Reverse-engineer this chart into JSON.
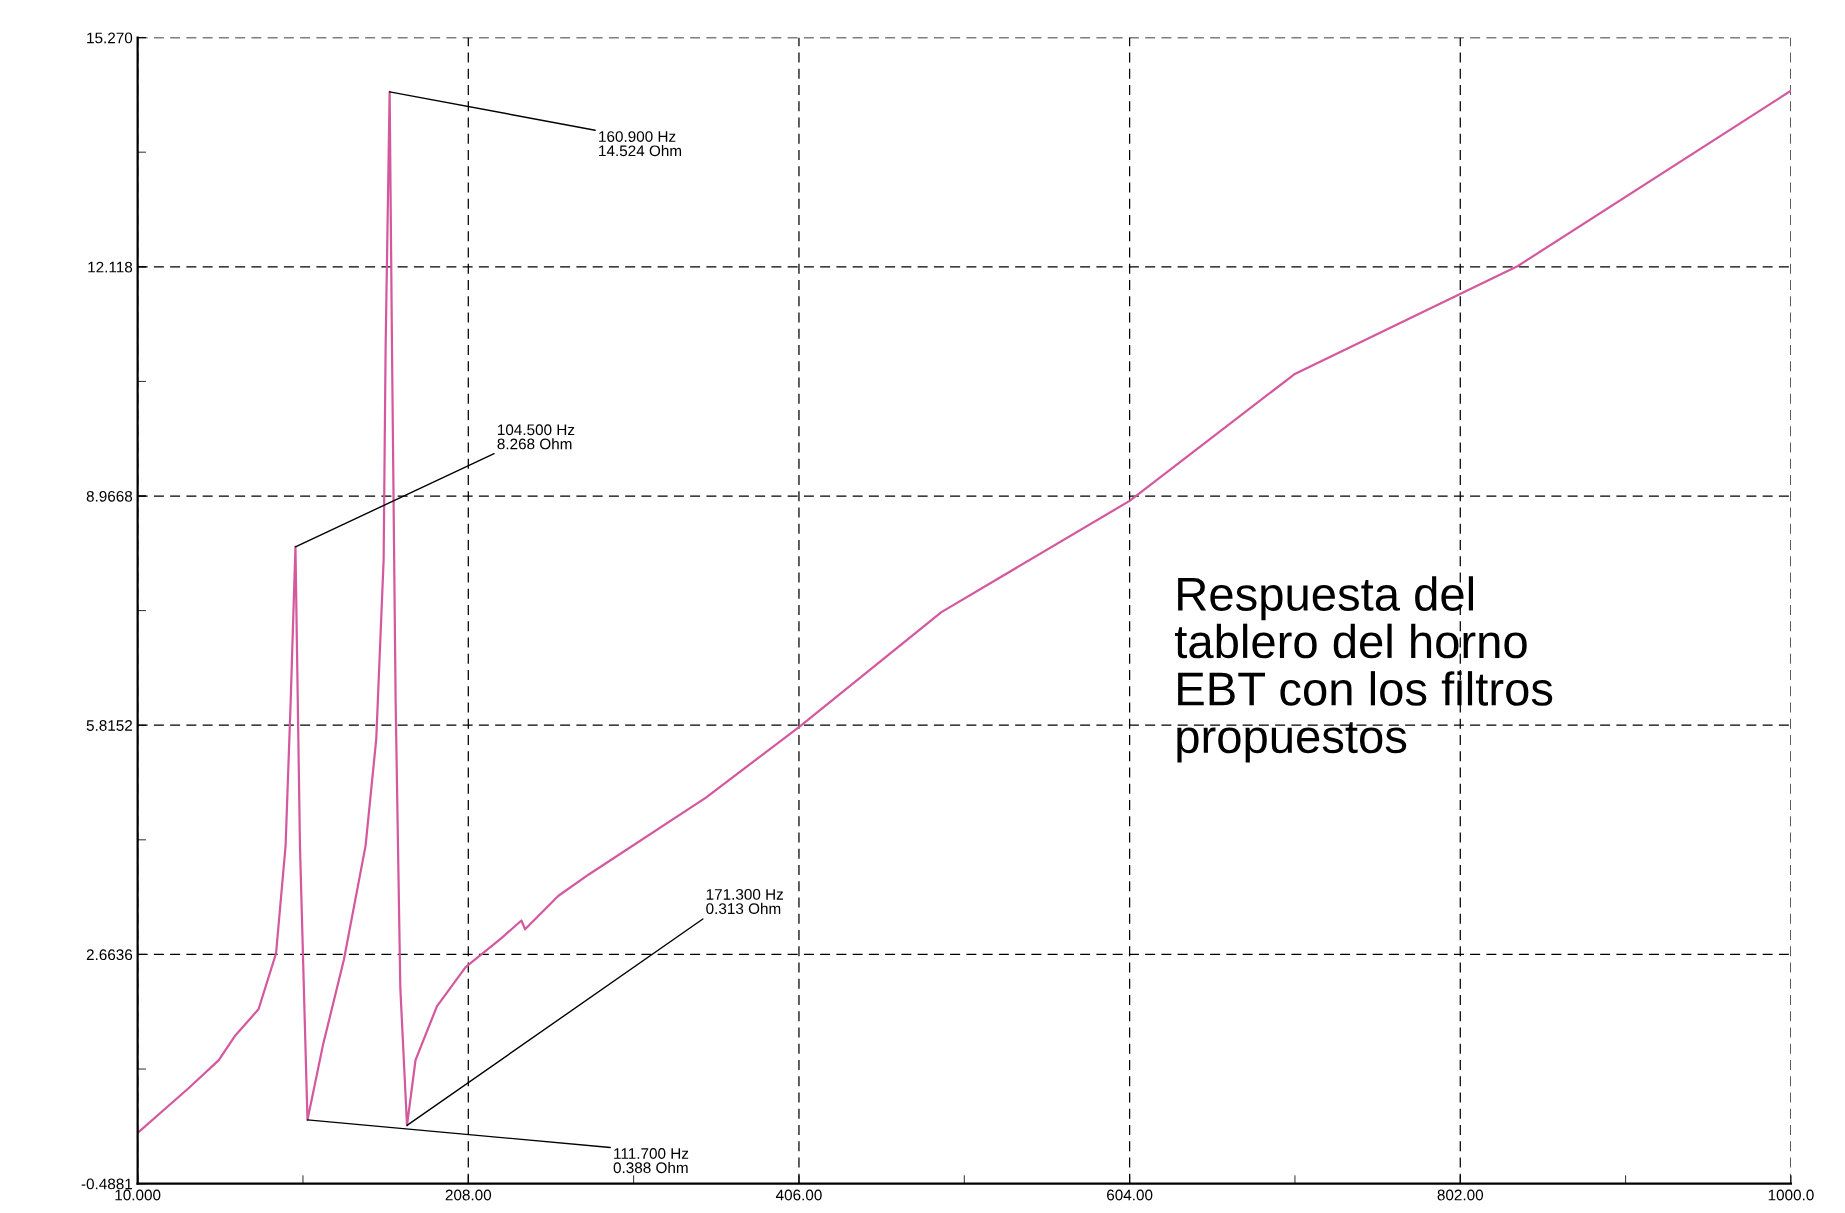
{
  "chart_data": {
    "type": "line",
    "x": [
      10,
      40.3,
      58.6,
      68.5,
      82.4,
      92.9,
      98.6,
      101.6,
      104.5,
      107.2,
      111.7,
      120.9,
      133.5,
      146.5,
      152.9,
      157.3,
      158.5,
      160.9,
      162.3,
      164.5,
      167.3,
      171.3,
      176.4,
      189.2,
      206.4,
      227.5,
      239.8,
      242,
      262,
      280.6,
      350.3,
      406,
      491.3,
      604,
      702.6,
      836.5,
      1000
    ],
    "series": [
      {
        "color": "#d4589e",
        "values": [
          0.21,
          0.82,
          1.21,
          1.55,
          1.91,
          2.68,
          4.16,
          6.12,
          8.268,
          4.16,
          0.388,
          1.41,
          2.59,
          4.16,
          5.63,
          8.09,
          11.03,
          14.524,
          11.03,
          6.12,
          2.2,
          0.313,
          1.21,
          1.95,
          2.49,
          2.88,
          3.13,
          3.01,
          3.47,
          3.77,
          4.82,
          5.79,
          7.37,
          8.9,
          10.64,
          12.13,
          14.54
        ]
      }
    ],
    "xlim": [
      10,
      1000
    ],
    "ylim": [
      -0.4881,
      15.27
    ],
    "xticks": [
      {
        "value": 10,
        "label": "10.000"
      },
      {
        "value": 208,
        "label": "208.00"
      },
      {
        "value": 406,
        "label": "406.00"
      },
      {
        "value": 604,
        "label": "604.00"
      },
      {
        "value": 802,
        "label": "802.00"
      },
      {
        "value": 1000,
        "label": "1000.0"
      }
    ],
    "yticks": [
      -0.4881,
      2.6636,
      5.8152,
      8.9668,
      12.118,
      {
        "value": 15.27,
        "label": "15.270"
      }
    ],
    "grid": true,
    "legend": false,
    "marker": "none",
    "line_style": "solid",
    "annotations": [
      {
        "text": "104.500 Hz\n8.268 Ohm",
        "x": 104.5,
        "y": 8.268
      },
      {
        "text": "160.900 Hz\n14.524 Ohm",
        "x": 160.9,
        "y": 14.524
      },
      {
        "text": "111.700 Hz\n0.388 Ohm",
        "x": 111.7,
        "y": 0.388
      },
      {
        "text": "171.300 Hz\n0.313 Ohm",
        "x": 171.3,
        "y": 0.313
      },
      "Respuesta del\ntablero del horno\nEBT con los filtros\npropuestos"
    ]
  }
}
